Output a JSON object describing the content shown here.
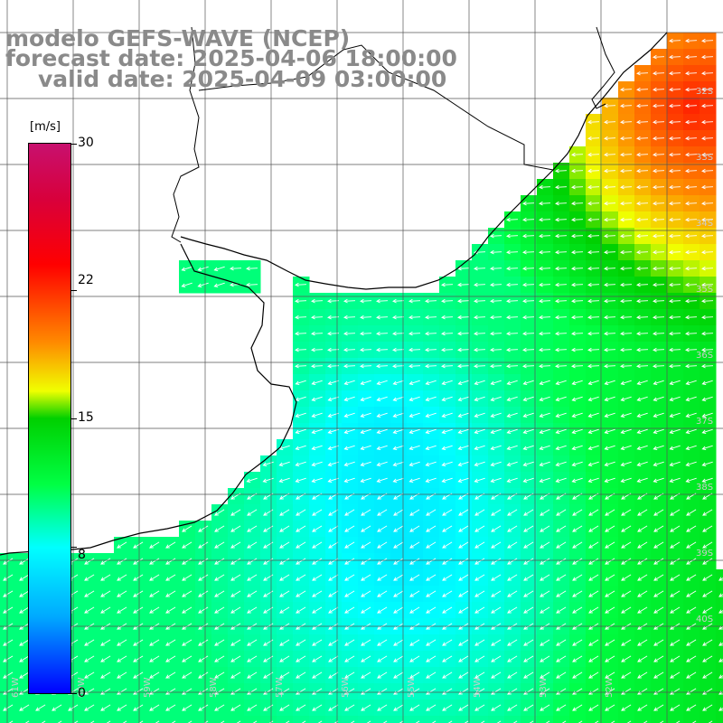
{
  "title": {
    "line1": "modelo GEFS-WAVE (NCEP)",
    "line2": "forecast date: 2025-04-06 18:00:00",
    "line3": "valid date: 2025-04-09 03:00:00"
  },
  "colorbar": {
    "unit": "[m/s]",
    "ticks": [
      "30",
      "22",
      "15",
      "8",
      "0"
    ],
    "tick_values": [
      30,
      22,
      15,
      8,
      0
    ],
    "min": 0,
    "max": 30,
    "colors": [
      "#0000ff",
      "#00aaff",
      "#00ffff",
      "#00ff44",
      "#00d000",
      "#f0ff00",
      "#ff8800",
      "#ff0000",
      "#d8003c",
      "#c8106e"
    ]
  },
  "map": {
    "region": "South Atlantic off Uruguay / Rio de la Plata",
    "lat_labels": [
      "32S",
      "33S",
      "34S",
      "35S",
      "36S",
      "37S",
      "38S",
      "39S",
      "40S"
    ],
    "lon_labels": [
      "61W",
      "60W",
      "59W",
      "58W",
      "57W",
      "56W",
      "55W",
      "54W",
      "53W",
      "52W"
    ],
    "lon_range": [
      -61.5,
      -52.0
    ],
    "lat_range": [
      -41.0,
      -31.0
    ],
    "wind_direction": "from east / northeast, arrows pointing west to southwest",
    "colors": {
      "land": "#ffffff",
      "coast": "#000000",
      "grid": "#555555",
      "arrow": "#ffffff",
      "label": "#cccccc"
    }
  }
}
